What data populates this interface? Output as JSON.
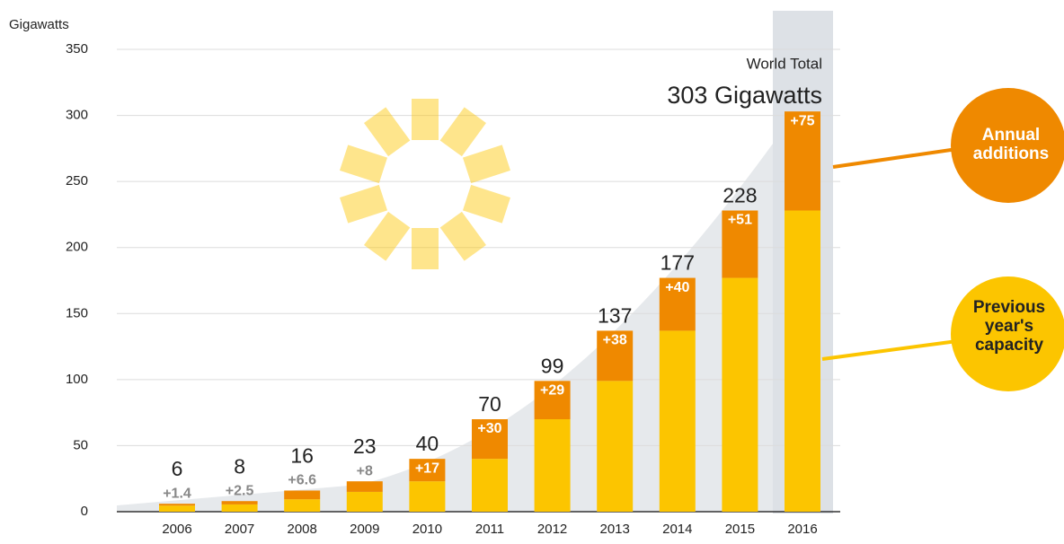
{
  "chart_data": {
    "type": "stacked-bar",
    "y_label": "Gigawatts",
    "annotation_title": "World Total",
    "annotation_value": "303 Gigawatts",
    "categories": [
      "2006",
      "2007",
      "2008",
      "2009",
      "2010",
      "2011",
      "2012",
      "2013",
      "2014",
      "2015",
      "2016"
    ],
    "series": [
      {
        "name": "Previous year's capacity",
        "color": "#fcc500",
        "values": [
          4.6,
          5.5,
          9.4,
          15,
          23,
          40,
          70,
          99,
          137,
          177,
          228
        ]
      },
      {
        "name": "Annual additions",
        "color": "#ef8900",
        "values": [
          1.4,
          2.5,
          6.6,
          8,
          17,
          30,
          29,
          38,
          40,
          51,
          75
        ],
        "value_labels": [
          "+1.4",
          "+2.5",
          "+6.6",
          "+8",
          "+17",
          "+30",
          "+29",
          "+38",
          "+40",
          "+51",
          "+75"
        ]
      }
    ],
    "totals": [
      6,
      8,
      16,
      23,
      40,
      70,
      99,
      137,
      177,
      228,
      303
    ],
    "ylim": [
      0,
      350
    ],
    "yticks": [
      0,
      50,
      100,
      150,
      200,
      250,
      300,
      350
    ],
    "grid": true
  }
}
